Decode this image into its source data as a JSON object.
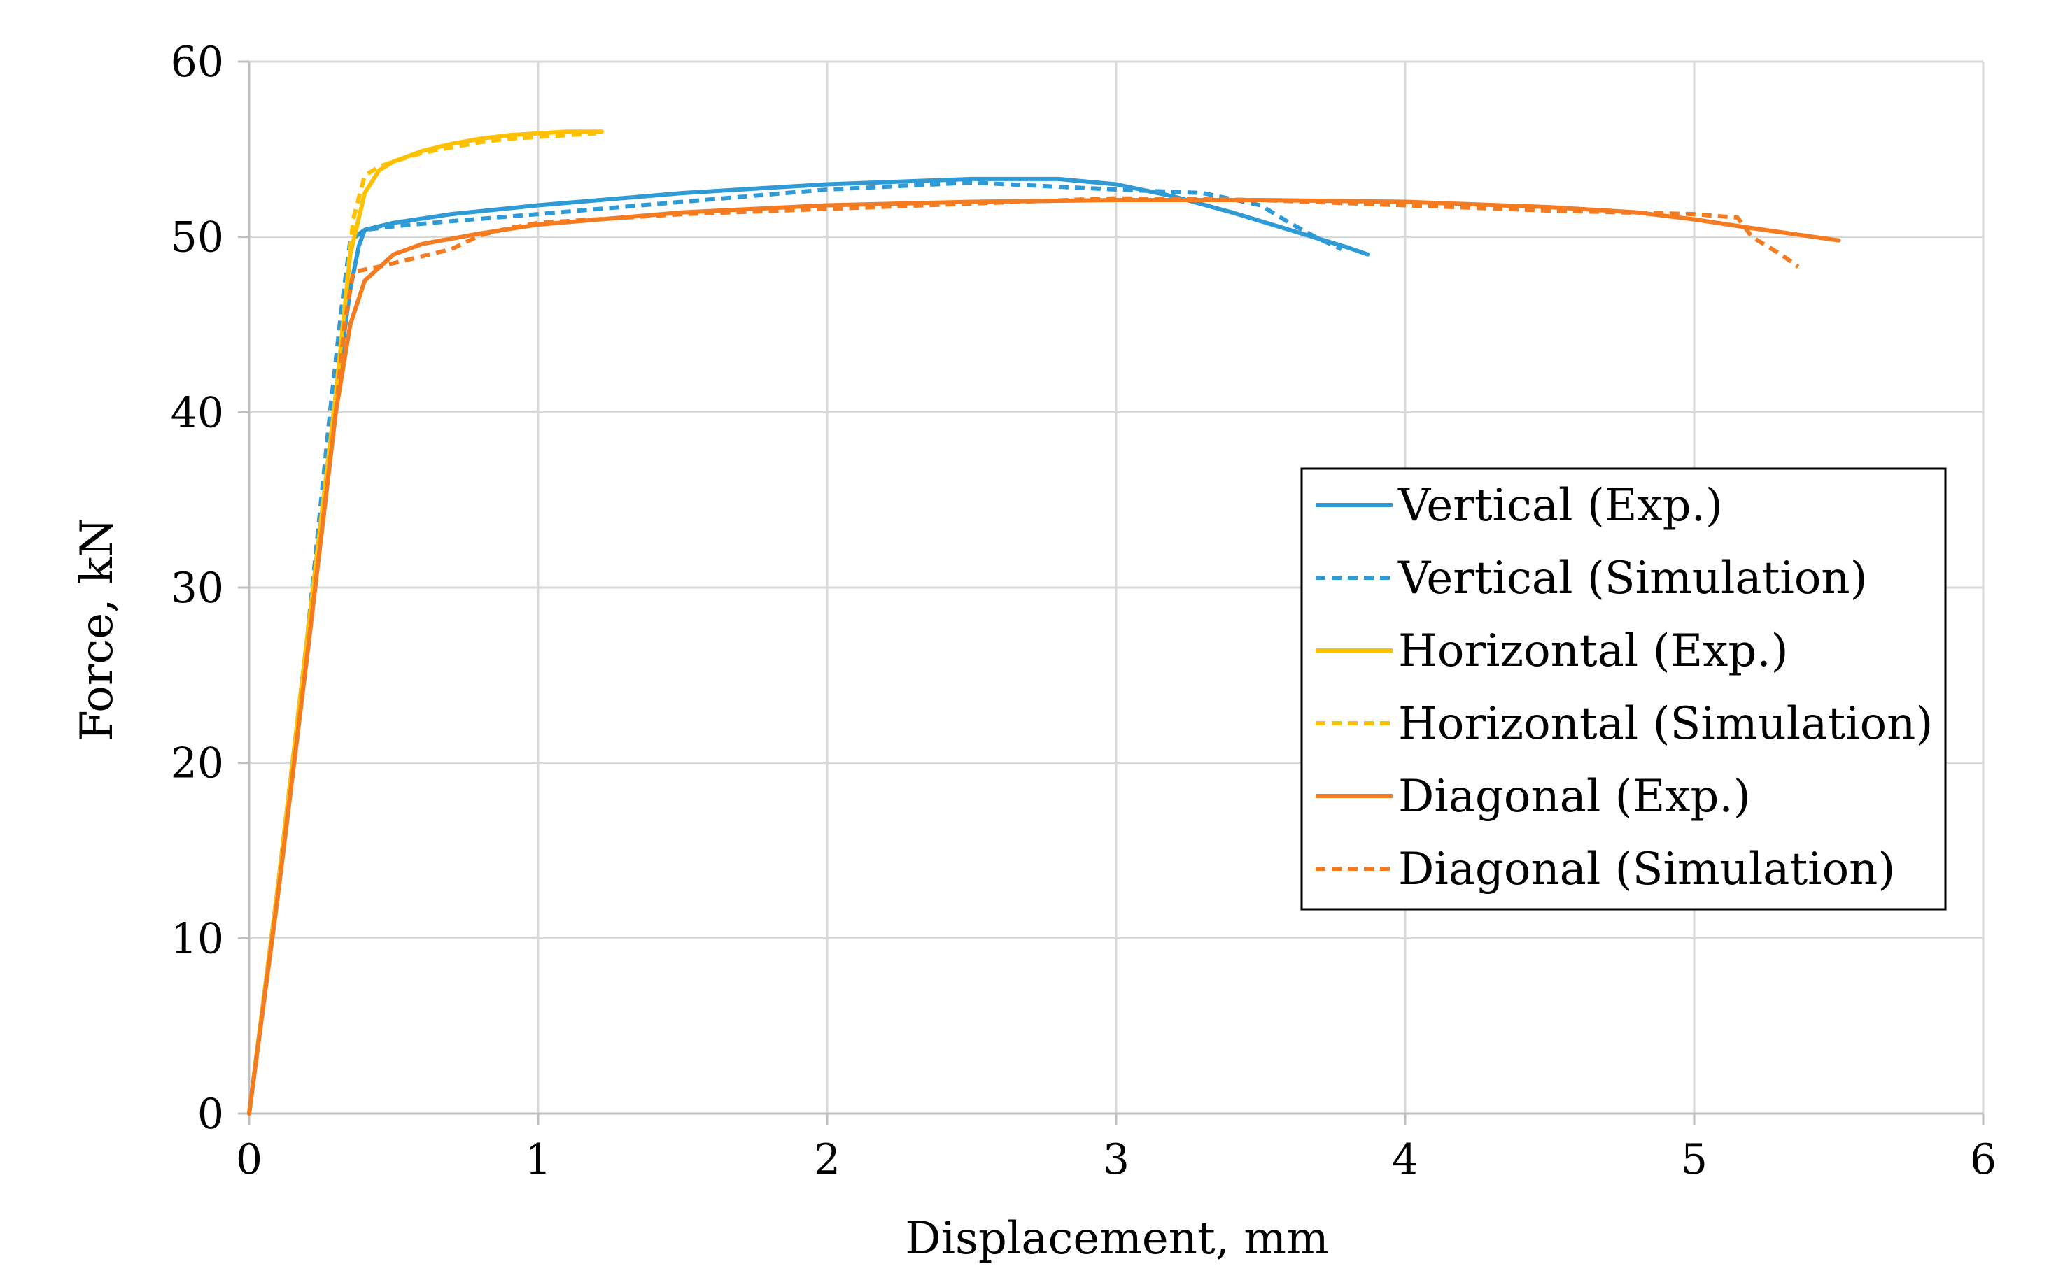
{
  "chart_data": {
    "type": "line",
    "title": "",
    "xlabel": "Displacement, mm",
    "ylabel": "Force, kN",
    "xlim": [
      0,
      6
    ],
    "ylim": [
      0,
      60
    ],
    "xticks": [
      0,
      1,
      2,
      3,
      4,
      5,
      6
    ],
    "yticks": [
      0,
      10,
      20,
      30,
      40,
      50,
      60
    ],
    "grid": true,
    "legend_position": "right-center",
    "series": [
      {
        "name": "Vertical (Exp.)",
        "color": "#2E9BD6",
        "dash": "solid",
        "x": [
          0,
          0.1,
          0.2,
          0.3,
          0.35,
          0.38,
          0.4,
          0.5,
          0.7,
          1.0,
          1.5,
          2.0,
          2.5,
          2.8,
          3.0,
          3.2,
          3.4,
          3.6,
          3.8,
          3.87
        ],
        "y": [
          0,
          13,
          27,
          41,
          47,
          49.5,
          50.4,
          50.8,
          51.3,
          51.8,
          52.5,
          53.0,
          53.3,
          53.3,
          53.0,
          52.3,
          51.4,
          50.4,
          49.4,
          49.0
        ]
      },
      {
        "name": "Vertical (Simulation)",
        "color": "#2E9BD6",
        "dash": "dashed",
        "x": [
          0,
          0.1,
          0.2,
          0.28,
          0.32,
          0.35,
          0.4,
          0.5,
          0.7,
          1.0,
          1.5,
          2.0,
          2.5,
          3.0,
          3.3,
          3.5,
          3.6,
          3.7,
          3.78
        ],
        "y": [
          0,
          13,
          27,
          40,
          46,
          49.8,
          50.4,
          50.6,
          50.9,
          51.3,
          52.0,
          52.7,
          53.1,
          52.7,
          52.5,
          51.8,
          50.8,
          49.9,
          49.3
        ]
      },
      {
        "name": "Horizontal (Exp.)",
        "color": "#FFC000",
        "dash": "solid",
        "x": [
          0,
          0.1,
          0.2,
          0.3,
          0.35,
          0.4,
          0.45,
          0.5,
          0.6,
          0.7,
          0.8,
          0.9,
          1.0,
          1.1,
          1.22
        ],
        "y": [
          0,
          13,
          27,
          41,
          49,
          52.5,
          53.8,
          54.3,
          54.9,
          55.3,
          55.6,
          55.8,
          55.9,
          56.0,
          56.0
        ]
      },
      {
        "name": "Horizontal (Simulation)",
        "color": "#FFC000",
        "dash": "dashed",
        "x": [
          0,
          0.1,
          0.2,
          0.3,
          0.36,
          0.4,
          0.45,
          0.5,
          0.6,
          0.7,
          0.8,
          0.9,
          1.0,
          1.1,
          1.2
        ],
        "y": [
          0,
          13,
          27,
          41,
          51,
          53.5,
          54.0,
          54.3,
          54.8,
          55.1,
          55.4,
          55.6,
          55.7,
          55.8,
          55.9
        ]
      },
      {
        "name": "Diagonal (Exp.)",
        "color": "#F47B20",
        "dash": "solid",
        "x": [
          0,
          0.1,
          0.2,
          0.3,
          0.35,
          0.4,
          0.5,
          0.6,
          0.8,
          1.0,
          1.5,
          2.0,
          2.5,
          3.0,
          3.5,
          4.0,
          4.5,
          4.8,
          5.0,
          5.2,
          5.5
        ],
        "y": [
          0,
          12.5,
          26,
          40,
          45,
          47.5,
          49.0,
          49.6,
          50.2,
          50.7,
          51.4,
          51.8,
          52.0,
          52.1,
          52.1,
          52.0,
          51.7,
          51.4,
          51.0,
          50.5,
          49.8
        ]
      },
      {
        "name": "Diagonal (Simulation)",
        "color": "#F47B20",
        "dash": "dashed",
        "x": [
          0,
          0.1,
          0.2,
          0.3,
          0.33,
          0.36,
          0.45,
          0.5,
          0.6,
          0.7,
          0.8,
          0.9,
          1.0,
          1.5,
          2.0,
          2.5,
          3.0,
          3.5,
          4.0,
          4.5,
          5.0,
          5.15,
          5.2,
          5.3,
          5.36
        ],
        "y": [
          0,
          12.5,
          26,
          40,
          45,
          48.0,
          48.3,
          48.5,
          48.9,
          49.3,
          50.1,
          50.5,
          50.8,
          51.3,
          51.6,
          51.9,
          52.2,
          52.1,
          51.8,
          51.5,
          51.3,
          51.1,
          50.0,
          49.0,
          48.3
        ]
      }
    ]
  }
}
